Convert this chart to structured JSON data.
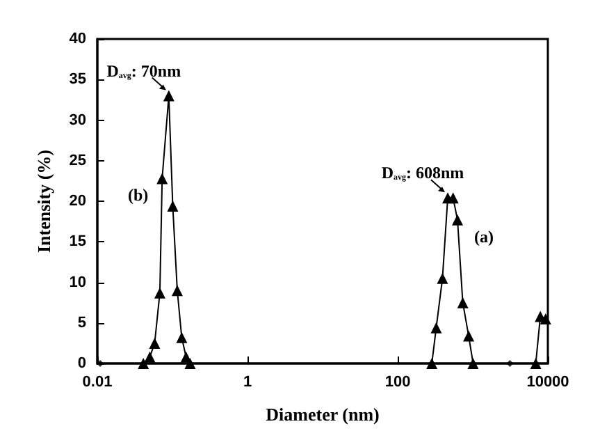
{
  "chart_data": {
    "type": "line",
    "xlabel": "Diameter (nm)",
    "ylabel": "Intensity (%)",
    "log": "x",
    "xlim": [
      0.01,
      10000
    ],
    "xticks": [
      0.01,
      1,
      100,
      10000
    ],
    "ylim": [
      0,
      40
    ],
    "yticks": [
      0,
      5,
      10,
      15,
      20,
      25,
      30,
      35,
      40
    ],
    "grid": false,
    "marker": "triangle",
    "series": [
      {
        "color": "#000000",
        "x": [
          285,
          326,
          395,
          464,
          547,
          626,
          736,
          881,
          1010,
          null,
          6900,
          7940,
          9330
        ],
        "values": [
          0,
          4.4,
          10.5,
          20.4,
          20.4,
          17.7,
          7.5,
          3.4,
          0,
          null,
          0,
          5.8,
          5.5
        ]
      },
      {
        "color": "#000000",
        "x": [
          0.041,
          0.05,
          0.058,
          0.068,
          0.073,
          0.0895,
          0.101,
          0.116,
          0.133,
          0.152,
          0.172
        ],
        "values": [
          0,
          0.8,
          2.5,
          8.7,
          22.8,
          33,
          19.4,
          9,
          3.2,
          0.8,
          0
        ]
      },
      {
        "type": "scatter",
        "marker": "diamond",
        "color": "#000000",
        "x": [
          0.0109,
          3120
        ],
        "values": [
          0,
          0
        ]
      }
    ],
    "annotations": [
      {
        "text": "D$_{avg}$: 70nm",
        "x": 0.0895,
        "y": 33
      },
      {
        "text": "D$_{avg}$: 608nm",
        "x": 464,
        "y": 20.4
      },
      {
        "text": "(b)",
        "x": 0.073,
        "y": 22.8
      },
      {
        "text": "(a)",
        "x": 626,
        "y": 17.7
      }
    ]
  }
}
